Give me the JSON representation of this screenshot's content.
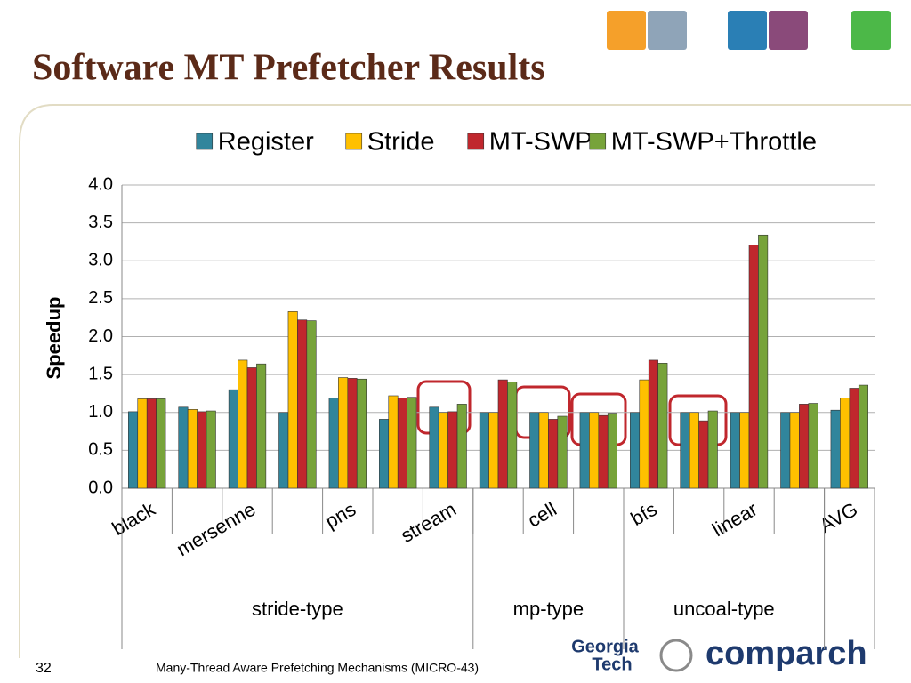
{
  "slide": {
    "title": "Software MT Prefetcher Results",
    "page_number": "32",
    "footer": "Many-Thread Aware Prefetching Mechanisms (MICRO-43)",
    "logo_left": [
      "Georgia",
      "Tech"
    ],
    "logo_right": "comparch"
  },
  "chart_data": {
    "type": "bar",
    "categories": [
      "black",
      null,
      "mersenne",
      null,
      "pns",
      null,
      "stream",
      null,
      "cell",
      null,
      "bfs",
      null,
      "linear",
      null,
      "AVG"
    ],
    "groups": [
      {
        "name": "stride-type",
        "count": 7
      },
      {
        "name": "mp-type",
        "count": 3
      },
      {
        "name": "uncoal-type",
        "count": 4
      },
      {
        "name": null,
        "count": 1
      }
    ],
    "y_label": "Speedup",
    "series": [
      {
        "name": "Register",
        "color": "#31859c",
        "values": [
          1.01,
          1.07,
          1.3,
          1.0,
          1.19,
          0.91,
          1.07,
          1.0,
          1.0,
          1.0,
          1.0,
          1.0,
          1.0,
          1.0,
          1.03
        ]
      },
      {
        "name": "Stride",
        "color": "#ffc000",
        "values": [
          1.18,
          1.04,
          1.69,
          2.33,
          1.46,
          1.22,
          1.0,
          1.0,
          1.0,
          1.0,
          1.43,
          1.0,
          1.0,
          1.0,
          1.19
        ]
      },
      {
        "name": "MT-SWP",
        "color": "#c0272d",
        "values": [
          1.18,
          1.01,
          1.59,
          2.22,
          1.45,
          1.19,
          1.01,
          1.43,
          0.91,
          0.96,
          1.69,
          0.89,
          3.21,
          1.11,
          1.32
        ]
      },
      {
        "name": "MT-SWP+Throttle",
        "color": "#77a33a",
        "values": [
          1.18,
          1.02,
          1.64,
          2.21,
          1.44,
          1.2,
          1.11,
          1.4,
          0.95,
          0.99,
          1.65,
          1.02,
          3.34,
          1.12,
          1.36
        ]
      }
    ],
    "ylim": [
      0,
      4
    ],
    "yticks": [
      {
        "value": 0,
        "label": "0.0"
      },
      0.5,
      {
        "value": 1,
        "label": "1.0"
      },
      1.5,
      {
        "value": 2,
        "label": "2.0"
      },
      2.5,
      {
        "value": 3,
        "label": "3.0"
      },
      3.5,
      {
        "value": 4,
        "label": "4.0"
      }
    ],
    "grid": true,
    "legend": "top"
  }
}
